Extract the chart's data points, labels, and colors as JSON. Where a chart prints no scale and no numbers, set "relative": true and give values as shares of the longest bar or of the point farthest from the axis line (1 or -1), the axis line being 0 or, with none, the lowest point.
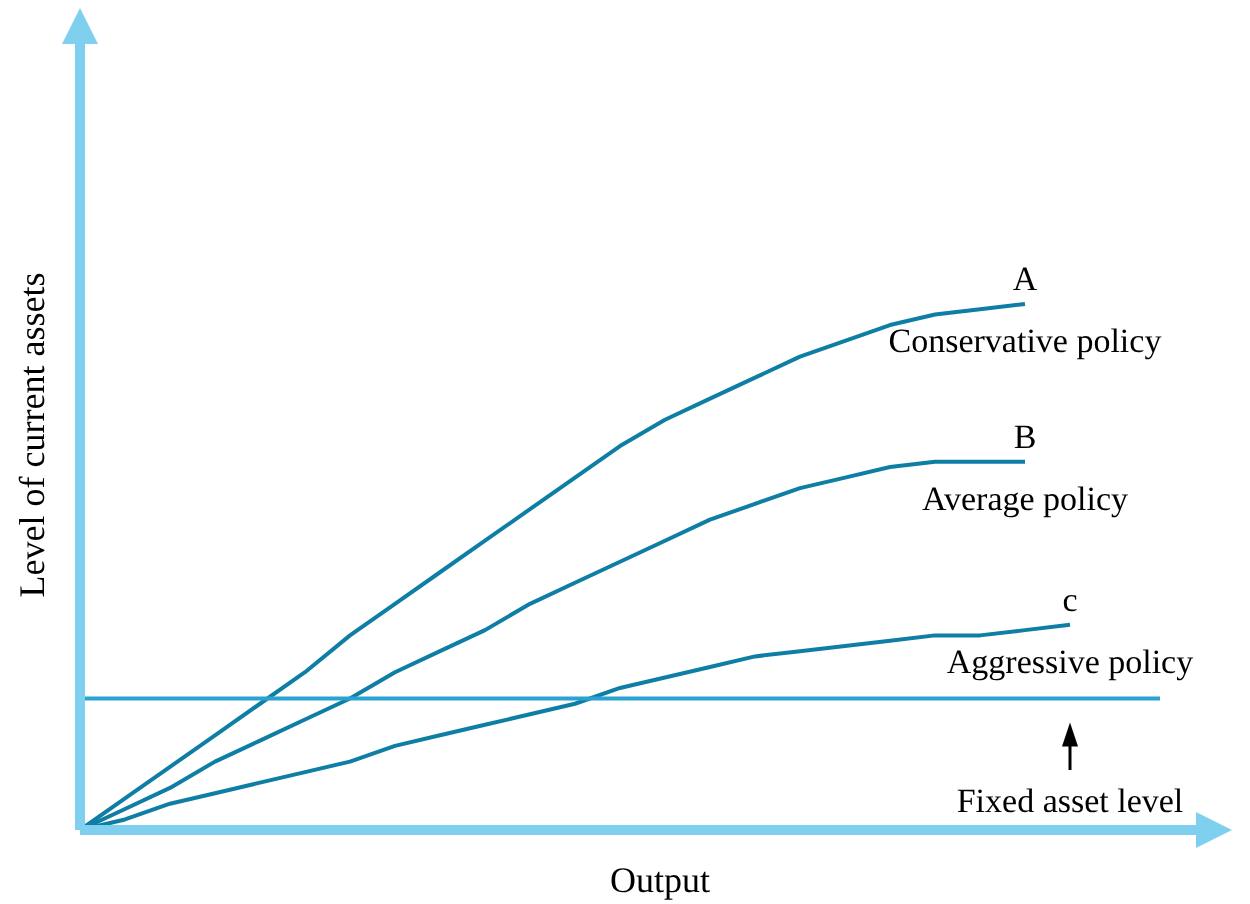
{
  "chart_data": {
    "type": "line",
    "relative": true,
    "xlabel": "Output",
    "ylabel": "Level of current assets",
    "legend": false,
    "line_style": "solid",
    "categories": [
      null,
      null,
      null,
      null,
      null,
      null,
      null,
      null,
      null,
      null,
      null,
      null,
      null,
      null,
      null,
      null,
      null,
      null,
      null,
      null,
      null,
      null,
      null,
      null,
      null
    ],
    "series": [
      {
        "name": "A",
        "color": "#0f7ea5",
        "values": [
          0,
          0.06,
          0.12,
          0.18,
          0.24,
          0.3,
          0.37,
          0.43,
          0.49,
          0.55,
          0.61,
          0.67,
          0.73,
          0.78,
          0.82,
          0.86,
          0.9,
          0.93,
          0.96,
          0.98,
          0.99,
          1,
          null,
          null,
          null
        ]
      },
      {
        "name": "B",
        "color": "#0f7ea5",
        "values": [
          0,
          0.04,
          0.08,
          0.13,
          0.17,
          0.21,
          0.25,
          0.3,
          0.34,
          0.38,
          0.43,
          0.47,
          0.51,
          0.55,
          0.59,
          0.62,
          0.65,
          0.67,
          0.69,
          0.7,
          0.7,
          0.7,
          null,
          null,
          null
        ]
      },
      {
        "name": "c",
        "color": "#0f7ea5",
        "values": [
          0,
          0.02,
          0.05,
          0.07,
          0.09,
          0.11,
          0.13,
          0.16,
          0.18,
          0.2,
          0.22,
          0.24,
          0.27,
          0.29,
          0.31,
          0.33,
          0.34,
          0.35,
          0.36,
          0.37,
          0.37,
          0.38,
          0.39,
          null,
          null
        ]
      },
      {
        "color": "#2aa3d2",
        "values": [
          0.25,
          0.25,
          0.25,
          0.25,
          0.25,
          0.25,
          0.25,
          0.25,
          0.25,
          0.25,
          0.25,
          0.25,
          0.25,
          0.25,
          0.25,
          0.25,
          0.25,
          0.25,
          0.25,
          0.25,
          0.25,
          0.25,
          0.25,
          0.25,
          0.25
        ]
      }
    ],
    "annotations": [
      "Conservative policy",
      "Average policy",
      "Aggressive policy",
      "Fixed asset level"
    ]
  }
}
